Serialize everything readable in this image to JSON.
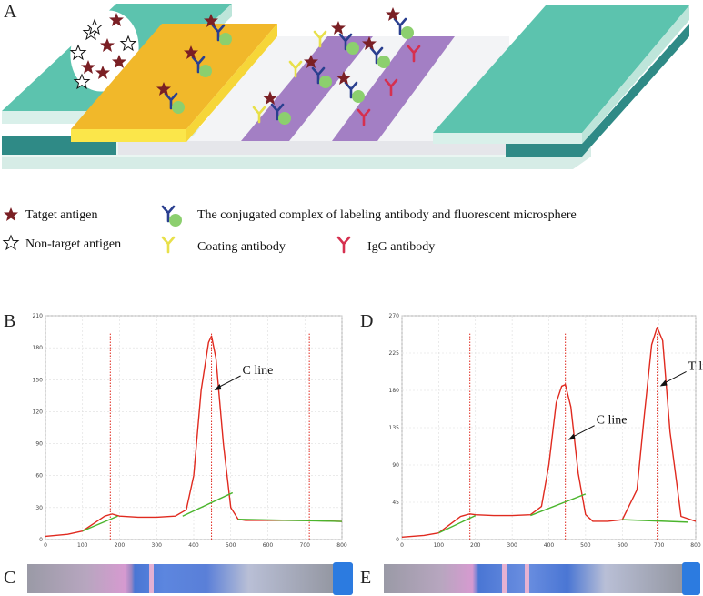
{
  "panels": {
    "a": "A",
    "b": "B",
    "c": "C",
    "d": "D",
    "e": "E"
  },
  "legend": {
    "target": "Tatget antigen",
    "nontarget": "Non-target antigen",
    "conjugate": "The conjugated complex of labeling antibody and fluorescent microsphere",
    "coating": "Coating antibody",
    "igg": "IgG antibody"
  },
  "colors": {
    "pad": "#5cc3ae",
    "conjugate_pad": "#f1b82a",
    "test_line": "#a37fc4",
    "star": "#7a1f24",
    "label_ab": "#2a3f8f",
    "microsphere": "#8ccf6e",
    "coating_ab": "#e8e04a",
    "igg_ab": "#d6304f",
    "signal": "#e02a1f",
    "baseline": "#4bb52d"
  },
  "chart_data": [
    {
      "type": "line",
      "panel": "B",
      "title": "",
      "xlabel": "",
      "ylabel": "",
      "xlim": [
        0,
        800
      ],
      "ylim": [
        0,
        210
      ],
      "xticks": [
        "0",
        "100",
        "200",
        "300",
        "400",
        "500",
        "600",
        "700",
        "800"
      ],
      "yticks": [
        "0",
        "30",
        "60",
        "90",
        "120",
        "150",
        "180",
        "210"
      ],
      "series": [
        {
          "name": "signal",
          "x": [
            0,
            60,
            100,
            130,
            160,
            180,
            200,
            250,
            300,
            350,
            380,
            400,
            420,
            440,
            448,
            460,
            480,
            500,
            520,
            540,
            600,
            700,
            800
          ],
          "y": [
            3,
            5,
            8,
            15,
            22,
            24,
            22,
            21,
            21,
            22,
            28,
            60,
            140,
            185,
            191,
            170,
            90,
            30,
            19,
            18,
            18,
            18,
            17
          ]
        },
        {
          "name": "baseline-1",
          "x": [
            100,
            195
          ],
          "y": [
            8,
            22
          ]
        },
        {
          "name": "baseline-2",
          "x": [
            370,
            505
          ],
          "y": [
            22,
            44
          ]
        },
        {
          "name": "baseline-3",
          "x": [
            520,
            800
          ],
          "y": [
            19,
            17
          ]
        }
      ],
      "markers_x": [
        175,
        448,
        712
      ],
      "annotations": [
        {
          "text": "C line",
          "x": 448,
          "y": 140
        }
      ]
    },
    {
      "type": "line",
      "panel": "D",
      "title": "",
      "xlabel": "",
      "ylabel": "",
      "xlim": [
        0,
        800
      ],
      "ylim": [
        0,
        270
      ],
      "xticks": [
        "0",
        "100",
        "200",
        "300",
        "400",
        "500",
        "600",
        "700",
        "800"
      ],
      "yticks": [
        "0",
        "45",
        "90",
        "135",
        "180",
        "225",
        "270"
      ],
      "series": [
        {
          "name": "signal",
          "x": [
            0,
            60,
            100,
            130,
            160,
            185,
            200,
            250,
            300,
            350,
            380,
            400,
            420,
            435,
            445,
            460,
            480,
            500,
            520,
            560,
            600,
            640,
            660,
            680,
            695,
            710,
            730,
            760,
            800
          ],
          "y": [
            3,
            5,
            8,
            18,
            28,
            31,
            30,
            29,
            29,
            30,
            40,
            90,
            165,
            185,
            187,
            160,
            80,
            30,
            22,
            22,
            24,
            60,
            150,
            235,
            256,
            240,
            130,
            28,
            22
          ]
        },
        {
          "name": "baseline-1",
          "x": [
            100,
            200
          ],
          "y": [
            8,
            29
          ]
        },
        {
          "name": "baseline-2",
          "x": [
            350,
            500
          ],
          "y": [
            29,
            55
          ]
        },
        {
          "name": "baseline-3",
          "x": [
            600,
            780
          ],
          "y": [
            24,
            21
          ]
        }
      ],
      "markers_x": [
        185,
        445,
        695
      ],
      "annotations": [
        {
          "text": "C line",
          "x": 445,
          "y": 120
        },
        {
          "text": "T line",
          "x": 695,
          "y": 185
        }
      ]
    }
  ]
}
